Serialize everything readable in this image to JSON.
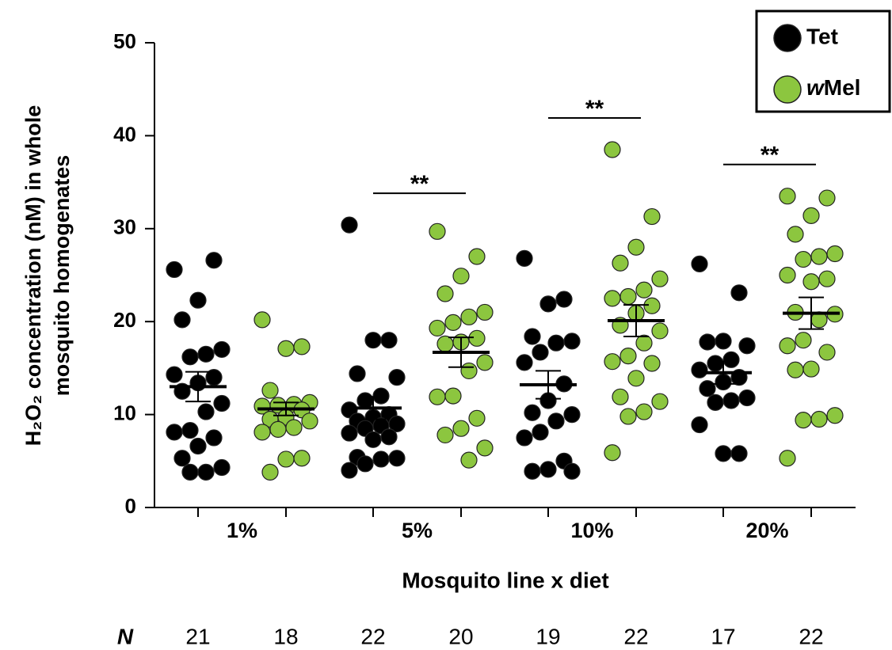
{
  "chart_data": {
    "type": "dotplot",
    "ylabel": [
      "H₂O₂ concentration (nM) in whole",
      "mosquito homogenates"
    ],
    "xlabel": "Mosquito line x diet",
    "categories": [
      "1%",
      "5%",
      "10%",
      "20%"
    ],
    "ylim": [
      0,
      50
    ],
    "yticks": [
      0,
      10,
      20,
      30,
      40,
      50
    ],
    "legend": "top-right",
    "n_label": "N",
    "series": [
      {
        "name": "Tet",
        "color": "#000000",
        "values": [
          [
            25.6,
            26.6,
            22.3,
            20.2,
            17,
            16.5,
            16.2,
            14.3,
            14,
            13.4,
            12.5,
            11.2,
            10.3,
            8.3,
            8.1,
            7.5,
            6.6,
            5.3,
            4.3,
            3.8,
            3.8
          ],
          [
            30.4,
            18,
            18,
            14.4,
            14,
            12,
            11.5,
            10.5,
            10,
            9.7,
            9.3,
            9,
            8.8,
            8.5,
            8,
            7.6,
            7.3,
            5.4,
            5.3,
            5.2,
            4.7,
            4
          ],
          [
            26.8,
            22.4,
            21.9,
            18.4,
            17.9,
            17.7,
            16.7,
            15.6,
            13.3,
            11.5,
            10.2,
            10,
            9.3,
            8.1,
            7.5,
            5,
            4.1,
            3.9,
            3.9
          ],
          [
            26.2,
            23.1,
            17.9,
            17.8,
            17.4,
            15.9,
            15.5,
            14.8,
            14,
            13.5,
            12.8,
            11.8,
            11.5,
            11.3,
            8.9,
            5.8,
            5.8
          ]
        ],
        "means": [
          13,
          10.7,
          13.2,
          14.5
        ],
        "sem": [
          1.6,
          1.2,
          1.5,
          1.2
        ],
        "n": [
          21,
          22,
          19,
          17
        ]
      },
      {
        "name": "wMel",
        "color": "#8cc63f",
        "values": [
          [
            20.2,
            17.3,
            17.1,
            12.6,
            11.3,
            11.1,
            11,
            10.9,
            10.5,
            9.7,
            9.5,
            9.3,
            8.6,
            8.4,
            8.1,
            5.3,
            5.2,
            3.8
          ],
          [
            29.7,
            27,
            24.9,
            23,
            21,
            20.5,
            19.9,
            19.3,
            18.2,
            17.8,
            17.6,
            15.6,
            14.7,
            12,
            11.9,
            9.6,
            8.5,
            7.8,
            6.4,
            5.1
          ],
          [
            38.5,
            31.3,
            28,
            26.3,
            24.6,
            23.4,
            22.7,
            22.5,
            21.7,
            20.9,
            19.6,
            19,
            17.7,
            16.3,
            15.7,
            15.5,
            13.9,
            11.9,
            11.4,
            10.3,
            9.8,
            5.9
          ],
          [
            33.5,
            33.3,
            31.4,
            29.4,
            27.3,
            27,
            26.7,
            25,
            24.6,
            24.3,
            21,
            20.8,
            20.2,
            18,
            17.4,
            16.7,
            14.9,
            14.8,
            9.9,
            9.5,
            9.4,
            5.3
          ]
        ],
        "means": [
          10.6,
          16.7,
          20.1,
          20.9
        ],
        "sem": [
          0.7,
          1.6,
          1.7,
          1.7
        ],
        "n": [
          18,
          20,
          22,
          22
        ]
      }
    ],
    "significance": [
      {
        "category": "5%",
        "label": "**"
      },
      {
        "category": "10%",
        "label": "**"
      },
      {
        "category": "20%",
        "label": "**"
      }
    ]
  }
}
